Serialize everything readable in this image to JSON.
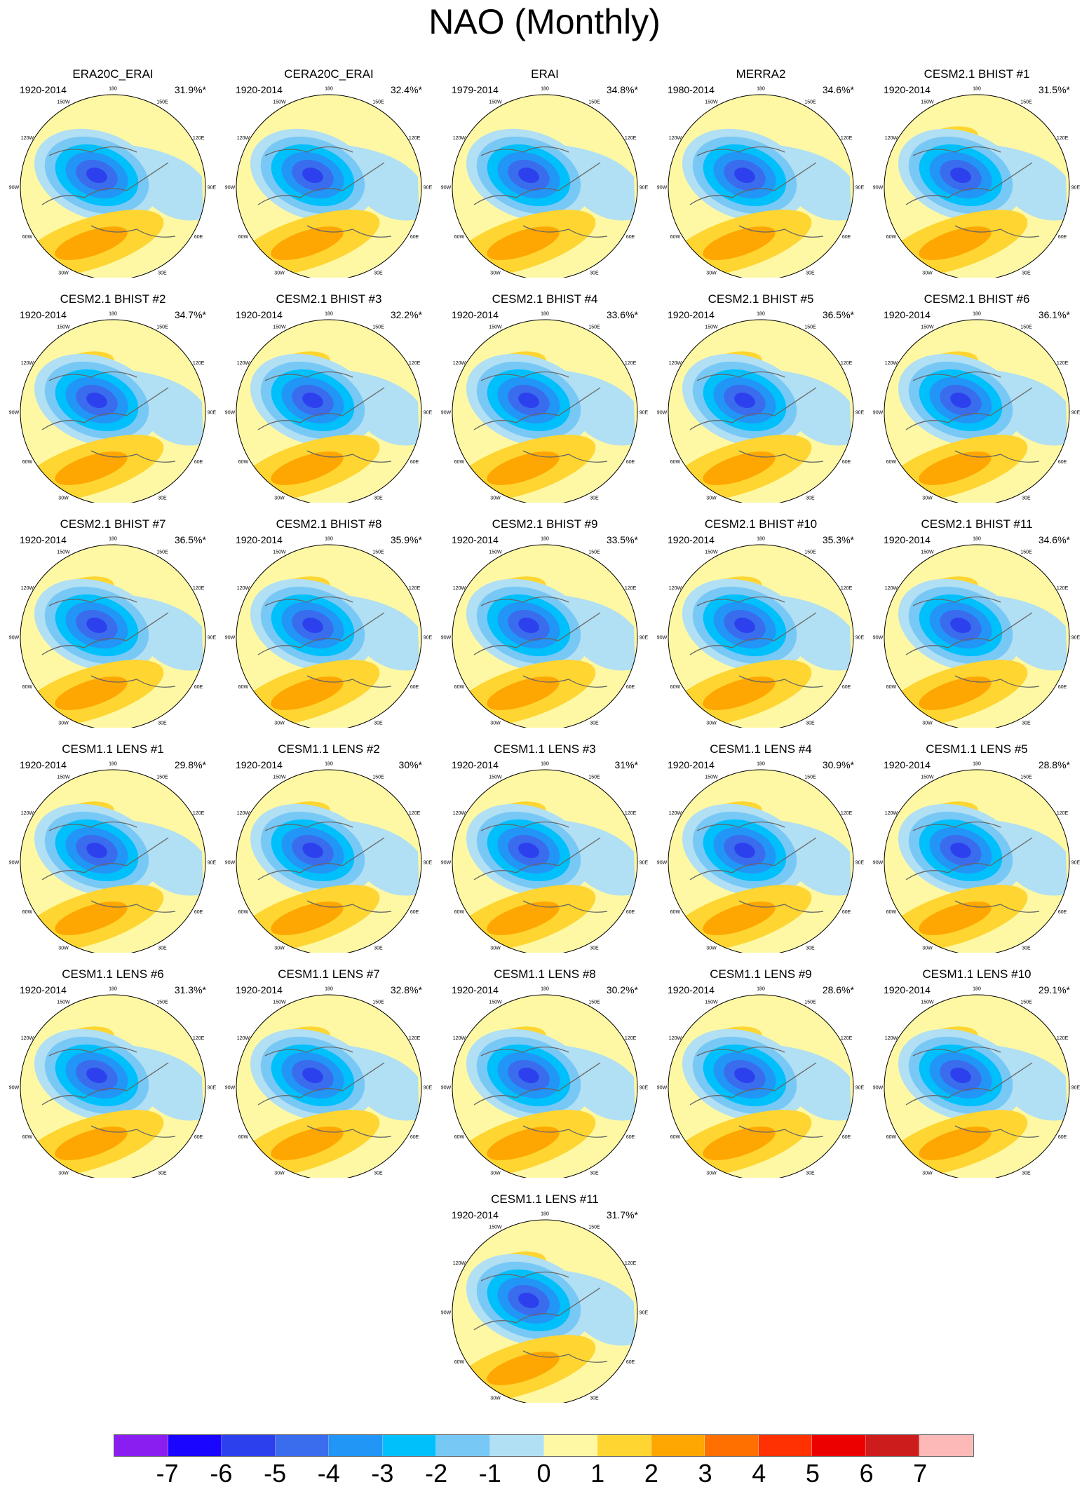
{
  "title": "NAO (Monthly)",
  "chart_data": {
    "type": "heatmap",
    "projection": "polar-stereographic",
    "lon_labels": [
      "180",
      "150E",
      "120E",
      "90E",
      "60E",
      "30E",
      "0",
      "30W",
      "60W",
      "90W",
      "120W",
      "150W"
    ],
    "panels": [
      {
        "title": "ERA20C_ERAI",
        "period": "1920-2014",
        "pct": "31.9%*"
      },
      {
        "title": "CERA20C_ERAI",
        "period": "1920-2014",
        "pct": "32.4%*"
      },
      {
        "title": "ERAI",
        "period": "1979-2014",
        "pct": "34.8%*"
      },
      {
        "title": "MERRA2",
        "period": "1980-2014",
        "pct": "34.6%*"
      },
      {
        "title": "CESM2.1 BHIST #1",
        "period": "1920-2014",
        "pct": "31.5%*"
      },
      {
        "title": "CESM2.1 BHIST #2",
        "period": "1920-2014",
        "pct": "34.7%*"
      },
      {
        "title": "CESM2.1 BHIST #3",
        "period": "1920-2014",
        "pct": "32.2%*"
      },
      {
        "title": "CESM2.1 BHIST #4",
        "period": "1920-2014",
        "pct": "33.6%*"
      },
      {
        "title": "CESM2.1 BHIST #5",
        "period": "1920-2014",
        "pct": "36.5%*"
      },
      {
        "title": "CESM2.1 BHIST #6",
        "period": "1920-2014",
        "pct": "36.1%*"
      },
      {
        "title": "CESM2.1 BHIST #7",
        "period": "1920-2014",
        "pct": "36.5%*"
      },
      {
        "title": "CESM2.1 BHIST #8",
        "period": "1920-2014",
        "pct": "35.9%*"
      },
      {
        "title": "CESM2.1 BHIST #9",
        "period": "1920-2014",
        "pct": "33.5%*"
      },
      {
        "title": "CESM2.1 BHIST #10",
        "period": "1920-2014",
        "pct": "35.3%*"
      },
      {
        "title": "CESM2.1 BHIST #11",
        "period": "1920-2014",
        "pct": "34.6%*"
      },
      {
        "title": "CESM1.1 LENS #1",
        "period": "1920-2014",
        "pct": "29.8%*"
      },
      {
        "title": "CESM1.1 LENS #2",
        "period": "1920-2014",
        "pct": "30%*"
      },
      {
        "title": "CESM1.1 LENS #3",
        "period": "1920-2014",
        "pct": "31%*"
      },
      {
        "title": "CESM1.1 LENS #4",
        "period": "1920-2014",
        "pct": "30.9%*"
      },
      {
        "title": "CESM1.1 LENS #5",
        "period": "1920-2014",
        "pct": "28.8%*"
      },
      {
        "title": "CESM1.1 LENS #6",
        "period": "1920-2014",
        "pct": "31.3%*"
      },
      {
        "title": "CESM1.1 LENS #7",
        "period": "1920-2014",
        "pct": "32.8%*"
      },
      {
        "title": "CESM1.1 LENS #8",
        "period": "1920-2014",
        "pct": "30.2%*"
      },
      {
        "title": "CESM1.1 LENS #9",
        "period": "1920-2014",
        "pct": "28.6%*"
      },
      {
        "title": "CESM1.1 LENS #10",
        "period": "1920-2014",
        "pct": "29.1%*"
      },
      {
        "title": "CESM1.1 LENS #11",
        "period": "1920-2014",
        "pct": "31.7%*"
      }
    ],
    "colorbar": {
      "labels": [
        "-7",
        "-6",
        "-5",
        "-4",
        "-3",
        "-2",
        "-1",
        "0",
        "1",
        "2",
        "3",
        "4",
        "5",
        "6",
        "7"
      ],
      "colors": [
        "#8a1df0",
        "#1a06ff",
        "#2d40ee",
        "#3a6cee",
        "#2196f7",
        "#00c0fb",
        "#78c8f5",
        "#b1dff3",
        "#fef8a4",
        "#fed531",
        "#fea601",
        "#ff7001",
        "#ff3001",
        "#ec0000",
        "#cd1c1c",
        "#fdb8b8"
      ]
    }
  }
}
